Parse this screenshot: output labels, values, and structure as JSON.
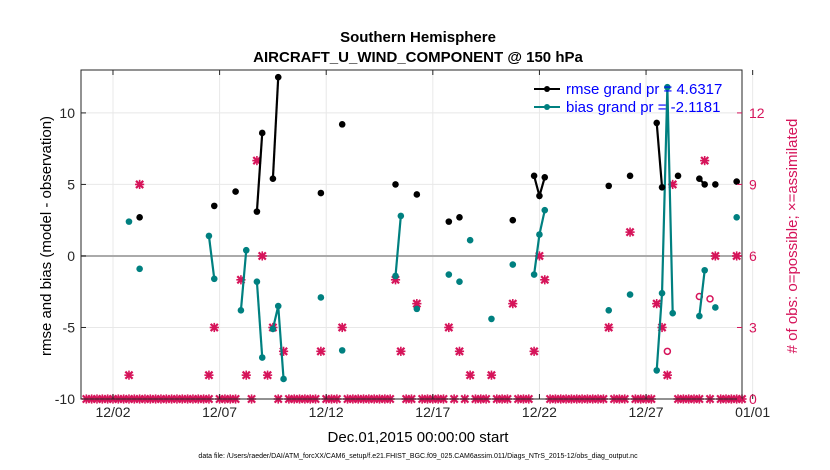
{
  "chart_data": {
    "type": "line",
    "title": "Southern Hemisphere",
    "subtitle": "AIRCRAFT_U_WIND_COMPONENT @ 150 hPa",
    "xlabel": "Dec.01,2015 00:00:00 start",
    "ylabel": "rmse and bias (model - observation)",
    "y2label": "# of obs: o=possible; ×=assimilated",
    "footnote": "data file: /Users/raeder/DAI/ATM_forcXX/CAM6_setup/f.e21.FHIST_BGC.f09_025.CAM6assim.011/Diags_NTrS_2015-12/obs_diag_output.nc",
    "xlim": [
      0.5,
      31.5
    ],
    "ylim": [
      -10,
      13
    ],
    "y2lim": [
      0,
      13.8
    ],
    "xticks": [
      2,
      7,
      12,
      17,
      22,
      27,
      32
    ],
    "xticklabels": [
      "12/02",
      "12/07",
      "12/12",
      "12/17",
      "12/22",
      "12/27",
      "01/01"
    ],
    "yticks": [
      -10,
      -5,
      0,
      5,
      10
    ],
    "y2ticks": [
      0,
      3,
      6,
      9,
      12
    ],
    "zero_line": 0,
    "colors": {
      "rmse": "#000000",
      "bias": "#008080",
      "obs": "#d6145a",
      "legend_text": "#0000ff",
      "zero_line": "#aaaaaa",
      "grid": "#e8e8e8"
    },
    "series": [
      {
        "name": "rmse",
        "legend": "rmse grand pr = 4.6317",
        "segments": [
          [
            [
              3.25,
              2.7
            ]
          ],
          [
            [
              6.75,
              3.5
            ]
          ],
          [
            [
              7.75,
              4.5
            ]
          ],
          [
            [
              8.75,
              3.1
            ],
            [
              9.0,
              8.6
            ]
          ],
          [
            [
              9.5,
              5.4
            ],
            [
              9.75,
              12.5
            ]
          ],
          [
            [
              11.75,
              4.4
            ]
          ],
          [
            [
              12.75,
              9.2
            ]
          ],
          [
            [
              15.25,
              5.0
            ]
          ],
          [
            [
              16.25,
              4.3
            ]
          ],
          [
            [
              17.75,
              2.4
            ]
          ],
          [
            [
              18.25,
              2.7
            ]
          ],
          [
            [
              20.75,
              2.5
            ]
          ],
          [
            [
              21.75,
              5.6
            ],
            [
              22.0,
              4.2
            ],
            [
              22.25,
              5.5
            ]
          ],
          [
            [
              25.25,
              4.9
            ]
          ],
          [
            [
              26.25,
              5.6
            ]
          ],
          [
            [
              27.5,
              9.3
            ],
            [
              27.75,
              4.8
            ]
          ],
          [
            [
              28.5,
              5.6
            ]
          ],
          [
            [
              29.5,
              5.4
            ],
            [
              29.75,
              5.0
            ]
          ],
          [
            [
              30.25,
              5.0
            ]
          ],
          [
            [
              31.25,
              5.2
            ]
          ]
        ]
      },
      {
        "name": "bias",
        "legend": "bias grand pr = -2.1181",
        "segments": [
          [
            [
              2.75,
              2.4
            ]
          ],
          [
            [
              3.25,
              -0.9
            ]
          ],
          [
            [
              6.5,
              1.4
            ],
            [
              6.75,
              -1.6
            ]
          ],
          [
            [
              8.0,
              -3.8
            ],
            [
              8.25,
              0.4
            ]
          ],
          [
            [
              8.75,
              -1.8
            ],
            [
              9.0,
              -7.1
            ]
          ],
          [
            [
              9.5,
              -5.1
            ],
            [
              9.75,
              -3.5
            ],
            [
              10.0,
              -8.6
            ]
          ],
          [
            [
              11.75,
              -2.9
            ]
          ],
          [
            [
              12.75,
              -6.6
            ]
          ],
          [
            [
              15.25,
              -1.4
            ],
            [
              15.5,
              2.8
            ]
          ],
          [
            [
              16.25,
              -3.7
            ]
          ],
          [
            [
              17.75,
              -1.3
            ]
          ],
          [
            [
              18.25,
              -1.8
            ]
          ],
          [
            [
              18.75,
              1.1
            ]
          ],
          [
            [
              19.75,
              -4.4
            ]
          ],
          [
            [
              20.75,
              -0.6
            ]
          ],
          [
            [
              21.75,
              -1.3
            ],
            [
              22.0,
              1.5
            ],
            [
              22.25,
              3.2
            ]
          ],
          [
            [
              25.25,
              -3.8
            ]
          ],
          [
            [
              26.25,
              -2.7
            ]
          ],
          [
            [
              27.5,
              -8.0
            ],
            [
              27.75,
              -2.6
            ],
            [
              28.0,
              11.8
            ],
            [
              28.25,
              -4.0
            ]
          ],
          [
            [
              29.5,
              -4.2
            ],
            [
              29.75,
              -1.0
            ]
          ],
          [
            [
              30.25,
              -3.6
            ]
          ],
          [
            [
              31.25,
              2.7
            ]
          ]
        ]
      },
      {
        "name": "obs_assimilated",
        "marker": "x",
        "points": [
          [
            0.75,
            0
          ],
          [
            1.0,
            0
          ],
          [
            1.25,
            0
          ],
          [
            1.5,
            0
          ],
          [
            1.75,
            0
          ],
          [
            2.0,
            0
          ],
          [
            2.25,
            0
          ],
          [
            2.5,
            0
          ],
          [
            2.75,
            0
          ],
          [
            2.75,
            1
          ],
          [
            3.0,
            0
          ],
          [
            3.25,
            0
          ],
          [
            3.25,
            9
          ],
          [
            3.5,
            0
          ],
          [
            3.75,
            0
          ],
          [
            4.0,
            0
          ],
          [
            4.25,
            0
          ],
          [
            4.5,
            0
          ],
          [
            4.75,
            0
          ],
          [
            5.0,
            0
          ],
          [
            5.25,
            0
          ],
          [
            5.5,
            0
          ],
          [
            5.75,
            0
          ],
          [
            6.0,
            0
          ],
          [
            6.25,
            0
          ],
          [
            6.5,
            0
          ],
          [
            6.5,
            1
          ],
          [
            6.75,
            3
          ],
          [
            7.0,
            0
          ],
          [
            7.25,
            0
          ],
          [
            7.5,
            0
          ],
          [
            7.75,
            0
          ],
          [
            8.0,
            5
          ],
          [
            8.25,
            1
          ],
          [
            8.5,
            0
          ],
          [
            8.75,
            10
          ],
          [
            9.0,
            6
          ],
          [
            9.25,
            1
          ],
          [
            9.5,
            3
          ],
          [
            9.75,
            0
          ],
          [
            10.0,
            2
          ],
          [
            10.25,
            0
          ],
          [
            10.5,
            0
          ],
          [
            10.75,
            0
          ],
          [
            11.0,
            0
          ],
          [
            11.25,
            0
          ],
          [
            11.5,
            0
          ],
          [
            11.75,
            2
          ],
          [
            12.0,
            0
          ],
          [
            12.25,
            0
          ],
          [
            12.5,
            0
          ],
          [
            12.75,
            3
          ],
          [
            13.0,
            0
          ],
          [
            13.25,
            0
          ],
          [
            13.5,
            0
          ],
          [
            13.75,
            0
          ],
          [
            14.0,
            0
          ],
          [
            14.25,
            0
          ],
          [
            14.5,
            0
          ],
          [
            14.75,
            0
          ],
          [
            15.0,
            0
          ],
          [
            15.25,
            5
          ],
          [
            15.5,
            2
          ],
          [
            15.75,
            0
          ],
          [
            16.0,
            0
          ],
          [
            16.25,
            4
          ],
          [
            16.5,
            0
          ],
          [
            16.75,
            0
          ],
          [
            17.0,
            0
          ],
          [
            17.25,
            0
          ],
          [
            17.5,
            0
          ],
          [
            17.75,
            3
          ],
          [
            18.0,
            0
          ],
          [
            18.25,
            2
          ],
          [
            18.5,
            0
          ],
          [
            18.75,
            1
          ],
          [
            19.0,
            0
          ],
          [
            19.25,
            0
          ],
          [
            19.5,
            0
          ],
          [
            19.75,
            1
          ],
          [
            20.0,
            0
          ],
          [
            20.25,
            0
          ],
          [
            20.5,
            0
          ],
          [
            20.75,
            4
          ],
          [
            21.0,
            0
          ],
          [
            21.25,
            0
          ],
          [
            21.5,
            0
          ],
          [
            21.75,
            2
          ],
          [
            22.0,
            6
          ],
          [
            22.25,
            5
          ],
          [
            22.5,
            0
          ],
          [
            22.75,
            0
          ],
          [
            23.0,
            0
          ],
          [
            23.25,
            0
          ],
          [
            23.5,
            0
          ],
          [
            23.75,
            0
          ],
          [
            24.0,
            0
          ],
          [
            24.25,
            0
          ],
          [
            24.5,
            0
          ],
          [
            24.75,
            0
          ],
          [
            25.0,
            0
          ],
          [
            25.25,
            3
          ],
          [
            25.5,
            0
          ],
          [
            25.75,
            0
          ],
          [
            26.0,
            0
          ],
          [
            26.25,
            7
          ],
          [
            26.5,
            0
          ],
          [
            26.75,
            0
          ],
          [
            27.0,
            0
          ],
          [
            27.25,
            0
          ],
          [
            27.5,
            4
          ],
          [
            27.75,
            3
          ],
          [
            28.0,
            1
          ],
          [
            28.25,
            9
          ],
          [
            28.5,
            0
          ],
          [
            28.75,
            0
          ],
          [
            29.0,
            0
          ],
          [
            29.25,
            0
          ],
          [
            29.5,
            0
          ],
          [
            29.75,
            10
          ],
          [
            30.0,
            0
          ],
          [
            30.25,
            6
          ],
          [
            30.5,
            0
          ],
          [
            30.75,
            0
          ],
          [
            31.0,
            0
          ],
          [
            31.25,
            0
          ],
          [
            31.25,
            6
          ],
          [
            31.5,
            0
          ]
        ]
      },
      {
        "name": "obs_possible",
        "marker": "o",
        "points": [
          [
            28.0,
            2
          ],
          [
            29.5,
            4.3
          ],
          [
            30.0,
            4.2
          ]
        ]
      }
    ]
  }
}
